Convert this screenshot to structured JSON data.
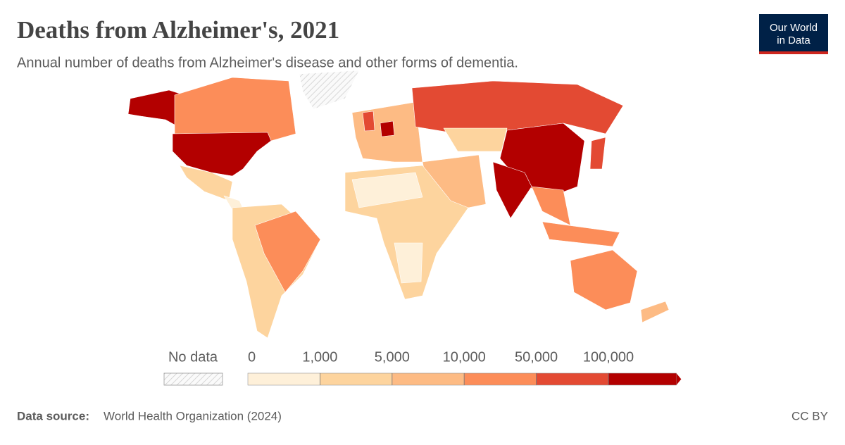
{
  "chart_data": {
    "type": "map",
    "title": "Deaths from Alzheimer's, 2021",
    "subtitle": "Annual number of deaths from Alzheimer's disease and other forms of dementia.",
    "logo": [
      "Our World",
      "in Data"
    ],
    "legend": {
      "no_data_label": "No data",
      "ticks": [
        0,
        {
          "value": 1000,
          "label": "1,000"
        },
        {
          "value": 5000,
          "label": "5,000"
        },
        {
          "value": 10000,
          "label": "10,000"
        },
        {
          "value": 50000,
          "label": "50,000"
        },
        {
          "value": 100000,
          "label": "100,000"
        }
      ],
      "colors": [
        "#fef0d9",
        "#fdd49e",
        "#fdbb84",
        "#fc8d59",
        "#e34a33",
        "#b30000"
      ]
    },
    "source_label": "Data source:",
    "source": "World Health Organization (2024)",
    "license": "CC BY"
  }
}
